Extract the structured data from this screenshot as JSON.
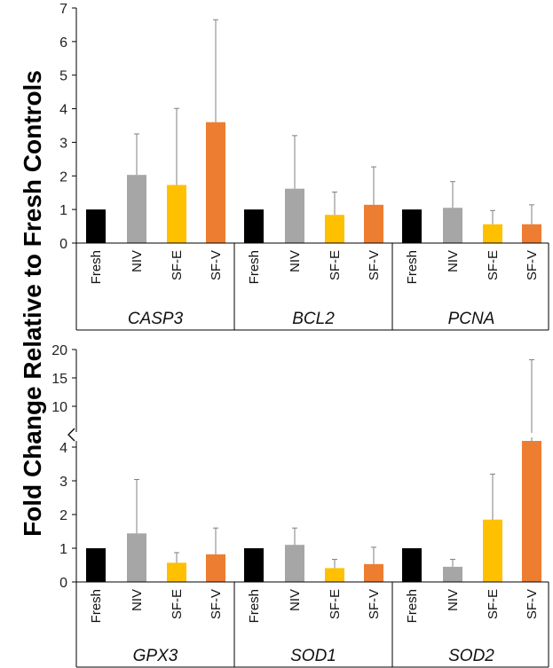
{
  "chart_data": {
    "type": "bar",
    "ylabel": "Fold Change Relative to Fresh Controls",
    "conditions": [
      "Fresh",
      "NIV",
      "SF-E",
      "SF-V"
    ],
    "colors": {
      "Fresh": "#000000",
      "NIV": "#a6a6a6",
      "SF-E": "#ffc000",
      "SF-V": "#ed7d31"
    },
    "panels": [
      {
        "yticks": [
          "0",
          "1",
          "2",
          "3",
          "4",
          "5",
          "6",
          "7"
        ],
        "ylim": [
          0,
          7
        ],
        "genes": [
          {
            "name": "CASP3",
            "values": [
              1.0,
              2.03,
              1.73,
              3.6
            ],
            "errors": [
              0.0,
              1.22,
              2.28,
              3.05
            ]
          },
          {
            "name": "BCL2",
            "values": [
              1.0,
              1.62,
              0.84,
              1.14
            ],
            "errors": [
              0.0,
              1.58,
              0.68,
              1.13
            ]
          },
          {
            "name": "PCNA",
            "values": [
              1.0,
              1.05,
              0.56,
              0.56
            ],
            "errors": [
              0.0,
              0.78,
              0.41,
              0.58
            ]
          }
        ]
      },
      {
        "yticks_lower": [
          "0",
          "1",
          "2",
          "3",
          "4"
        ],
        "yticks_upper": [
          "10",
          "15",
          "20"
        ],
        "ylim_lower": [
          0,
          4
        ],
        "ylim_upper": [
          5,
          20
        ],
        "broken_axis": true,
        "genes": [
          {
            "name": "GPX3",
            "values": [
              1.0,
              1.44,
              0.57,
              0.82
            ],
            "errors": [
              0.0,
              1.6,
              0.3,
              0.78
            ]
          },
          {
            "name": "SOD1",
            "values": [
              1.0,
              1.1,
              0.41,
              0.53
            ],
            "errors": [
              0.0,
              0.5,
              0.26,
              0.5
            ]
          },
          {
            "name": "SOD2",
            "values": [
              1.0,
              0.45,
              1.85,
              4.5
            ],
            "errors": [
              0.0,
              0.22,
              1.35,
              13.7
            ]
          }
        ]
      }
    ]
  }
}
